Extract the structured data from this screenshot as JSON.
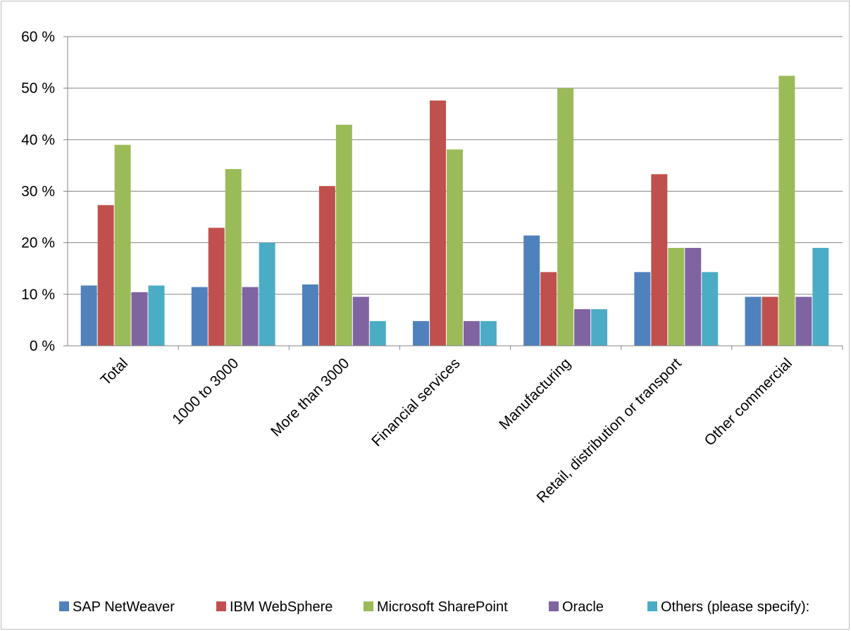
{
  "chart_data": {
    "type": "bar",
    "title": "",
    "xlabel": "",
    "ylabel": "",
    "ylim": [
      0,
      60
    ],
    "y_ticks": [
      0,
      10,
      20,
      30,
      40,
      50,
      60
    ],
    "y_tick_labels": [
      "0 %",
      "10 %",
      "20 %",
      "30 %",
      "40 %",
      "50 %",
      "60 %"
    ],
    "grid": true,
    "legend_position": "bottom",
    "categories": [
      "Total",
      "1000 to 3000",
      "More than 3000",
      "Financial services",
      "Manufacturing",
      "Retail, distribution or transport",
      "Other commercial"
    ],
    "series": [
      {
        "name": "SAP NetWeaver",
        "color": "#4f81bd",
        "values": [
          11.7,
          11.4,
          11.9,
          4.8,
          21.4,
          14.3,
          9.5
        ]
      },
      {
        "name": "IBM WebSphere",
        "color": "#c0504d",
        "values": [
          27.3,
          22.9,
          31.0,
          47.6,
          14.3,
          33.3,
          9.5
        ]
      },
      {
        "name": "Microsoft SharePoint",
        "color": "#9bbb59",
        "values": [
          39.0,
          34.3,
          42.9,
          38.1,
          50.0,
          19.0,
          52.4
        ]
      },
      {
        "name": "Oracle",
        "color": "#8064a2",
        "values": [
          10.4,
          11.4,
          9.5,
          4.8,
          7.1,
          19.0,
          9.5
        ]
      },
      {
        "name": "Others (please specify):",
        "color": "#4bacc6",
        "values": [
          11.7,
          20.0,
          4.8,
          4.8,
          7.1,
          14.3,
          19.0
        ]
      }
    ],
    "colors": {
      "axis": "#868686",
      "gridline": "#868686"
    }
  }
}
